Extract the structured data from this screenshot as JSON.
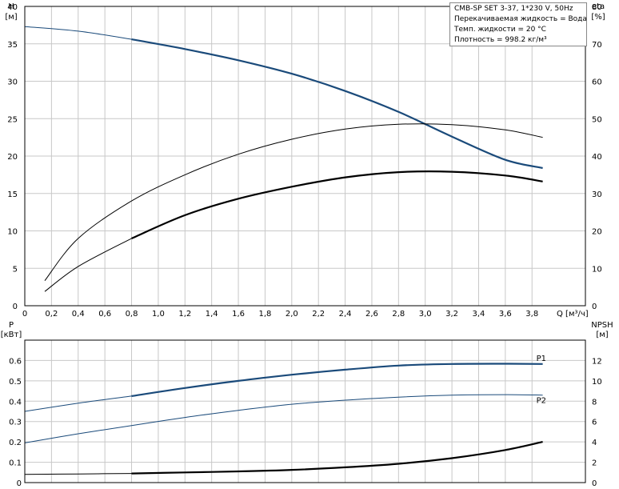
{
  "info": {
    "model": "CMB-SP SET 3-37, 1*230 V, 50Hz",
    "liquid": "Перекачиваемая жидкость = Вода",
    "temperature": "Темп. жидкости = 20 °C",
    "density": "Плотность = 998.2 кг/м³"
  },
  "chart_data": [
    {
      "type": "line",
      "xlabel": "Q [м³/ч]",
      "ylabel": "H [м]",
      "y2label": "eta [%]",
      "xlim": [
        0,
        4.2
      ],
      "ylim": [
        0,
        40
      ],
      "y2lim": [
        0,
        80
      ],
      "x_ticks": [
        "0",
        "0,2",
        "0,4",
        "0,6",
        "0,8",
        "1,0",
        "1,2",
        "1,4",
        "1,6",
        "1,8",
        "2,0",
        "2,2",
        "2,4",
        "2,6",
        "2,8",
        "3,0",
        "3,2",
        "3,4",
        "3,6",
        "3,8"
      ],
      "y_ticks": [
        "0",
        "5",
        "10",
        "15",
        "20",
        "25",
        "30",
        "35",
        "40"
      ],
      "y2_ticks": [
        "0",
        "10",
        "20",
        "30",
        "40",
        "50",
        "60",
        "70",
        "80"
      ],
      "grid": true,
      "series": [
        {
          "axis": "left",
          "thin_until": 0.8,
          "color": "#1a4a7a",
          "x": [
            0,
            0.4,
            0.8,
            1.2,
            1.6,
            2.0,
            2.4,
            2.8,
            3.2,
            3.6,
            3.88
          ],
          "y": [
            37.3,
            36.7,
            35.6,
            34.3,
            32.8,
            31.0,
            28.7,
            25.9,
            22.6,
            19.5,
            18.4
          ]
        },
        {
          "axis": "right",
          "thin_until": 99,
          "color": "#000000",
          "x": [
            0.15,
            0.4,
            0.8,
            1.2,
            1.6,
            2.0,
            2.4,
            2.8,
            3.2,
            3.6,
            3.88
          ],
          "y": [
            6.7,
            18.0,
            28.0,
            35.0,
            40.5,
            44.5,
            47.2,
            48.5,
            48.4,
            47.0,
            45.0
          ]
        },
        {
          "axis": "right",
          "thin_until": 0.8,
          "color": "#000000",
          "x": [
            0.15,
            0.4,
            0.8,
            1.2,
            1.6,
            2.0,
            2.4,
            2.8,
            3.2,
            3.6,
            3.88
          ],
          "y": [
            3.8,
            10.5,
            18.0,
            24.2,
            28.6,
            31.8,
            34.3,
            35.7,
            35.8,
            34.8,
            33.2
          ]
        }
      ]
    },
    {
      "type": "line",
      "xlabel": "",
      "ylabel": "P [кВт]",
      "y2label": "NPSH [м]",
      "xlim": [
        0,
        4.2
      ],
      "ylim": [
        0,
        0.7
      ],
      "y2lim": [
        0,
        14
      ],
      "y_ticks": [
        "0",
        "0.1",
        "0.2",
        "0.3",
        "0.4",
        "0.5",
        "0.6"
      ],
      "y2_ticks": [
        "0",
        "2",
        "4",
        "6",
        "8",
        "10",
        "12"
      ],
      "grid": true,
      "series": [
        {
          "name": "P1",
          "axis": "left",
          "thin_until": 0.8,
          "color": "#1a4a7a",
          "x": [
            0,
            0.4,
            0.8,
            1.2,
            1.6,
            2.0,
            2.4,
            2.8,
            3.2,
            3.6,
            3.88
          ],
          "y": [
            0.35,
            0.39,
            0.425,
            0.465,
            0.5,
            0.53,
            0.555,
            0.575,
            0.583,
            0.584,
            0.583
          ]
        },
        {
          "name": "P2",
          "axis": "left",
          "thin_until": 99,
          "color": "#1a4a7a",
          "x": [
            0,
            0.4,
            0.8,
            1.2,
            1.6,
            2.0,
            2.4,
            2.8,
            3.2,
            3.6,
            3.88
          ],
          "y": [
            0.195,
            0.24,
            0.28,
            0.32,
            0.355,
            0.385,
            0.405,
            0.42,
            0.43,
            0.432,
            0.43
          ]
        },
        {
          "axis": "right",
          "thin_until": 0.8,
          "color": "#000000",
          "x": [
            0,
            0.4,
            0.8,
            1.2,
            1.6,
            2.0,
            2.4,
            2.8,
            3.2,
            3.6,
            3.88
          ],
          "y": [
            0.8,
            0.85,
            0.9,
            1.0,
            1.1,
            1.25,
            1.5,
            1.85,
            2.4,
            3.2,
            4.0
          ]
        }
      ]
    }
  ]
}
